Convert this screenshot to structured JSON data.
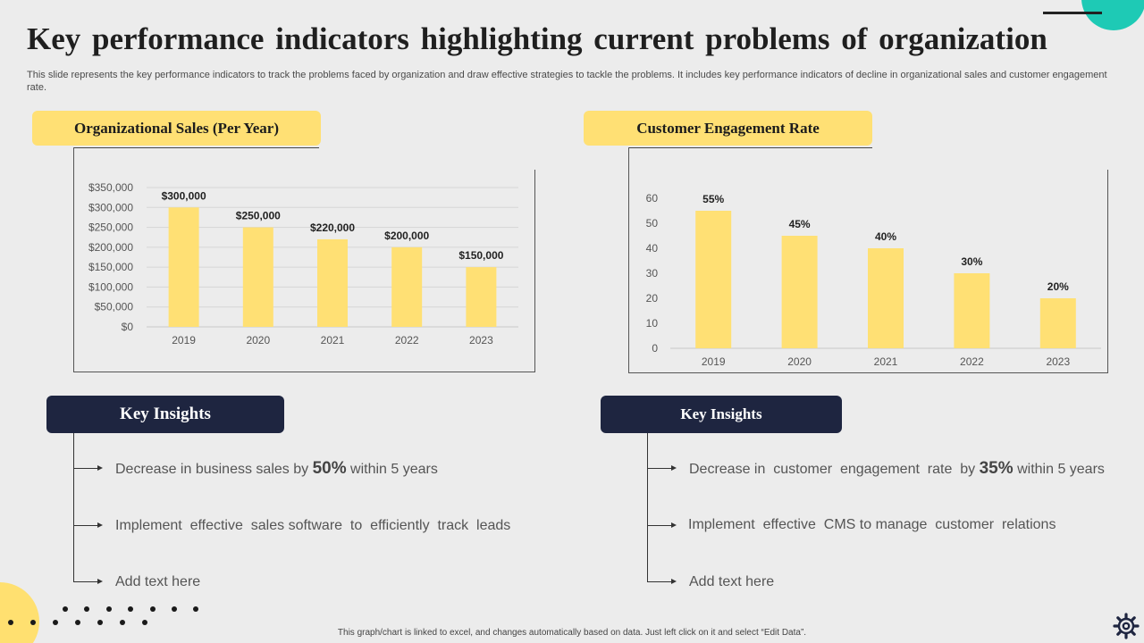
{
  "title": "Key performance indicators highlighting current problems of organization",
  "subtitle": "This slide represents the key performance indicators to track the problems faced by organization and draw effective strategies to tackle the problems. It includes key performance indicators of decline in organizational sales and customer engagement rate.",
  "footer": "This graph/chart is linked to excel, and changes automatically based on data. Just left click on it and select “Edit Data”.",
  "colors": {
    "bar": "#ffe074",
    "accent_teal": "#1ecab5",
    "navy": "#1e2540"
  },
  "left": {
    "header": "Organizational Sales (Per Year)",
    "insights_title": "Key Insights",
    "insights": [
      {
        "pre": "Decrease in business sales by ",
        "pct": "50%",
        "post": " within 5 years"
      },
      {
        "text": "Implement  effective  sales software  to  efficiently  track  leads"
      },
      {
        "text": "Add text here"
      }
    ]
  },
  "right": {
    "header": "Customer Engagement Rate",
    "insights_title": "Key Insights",
    "insights": [
      {
        "pre": "Decrease in  customer  engagement  rate  by ",
        "pct": "35%",
        "post": " within 5 years"
      },
      {
        "text": "Implement  effective  CMS to manage  customer  relations"
      },
      {
        "text": "Add text here"
      }
    ]
  },
  "chart_data": [
    {
      "type": "bar",
      "title": "Organizational Sales (Per Year)",
      "categories": [
        "2019",
        "2020",
        "2021",
        "2022",
        "2023"
      ],
      "values": [
        300000,
        250000,
        220000,
        200000,
        150000
      ],
      "data_labels": [
        "$300,000",
        "$250,000",
        "$220,000",
        "$200,000",
        "$150,000"
      ],
      "yticks": [
        "$0",
        "$50,000",
        "$100,000",
        "$150,000",
        "$200,000",
        "$250,000",
        "$300,000",
        "$350,000"
      ],
      "ylim": [
        0,
        350000
      ],
      "grid": true
    },
    {
      "type": "bar",
      "title": "Customer Engagement Rate",
      "categories": [
        "2019",
        "2020",
        "2021",
        "2022",
        "2023"
      ],
      "values": [
        55,
        45,
        40,
        30,
        20
      ],
      "data_labels": [
        "55%",
        "45%",
        "40%",
        "30%",
        "20%"
      ],
      "yticks": [
        "0",
        "10",
        "20",
        "30",
        "40",
        "50",
        "60"
      ],
      "ylim": [
        0,
        60
      ],
      "grid": false
    }
  ]
}
